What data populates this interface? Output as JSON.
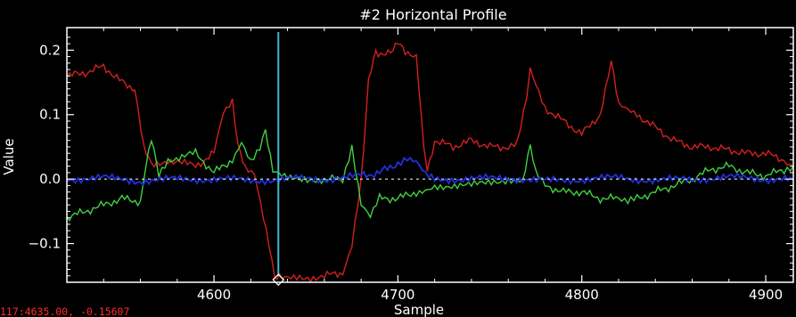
{
  "window": {
    "title": "#2 Horizontal Profile",
    "readout": "117:4635.00, -0.15607"
  },
  "colors": {
    "background": "#000000",
    "axes": "#ffffff",
    "cursor": "#40b8c8",
    "readout": "#ff2a2a"
  },
  "chart_data": {
    "type": "line",
    "title": "#2 Horizontal Profile",
    "xlabel": "Sample",
    "ylabel": "Value",
    "xlim": [
      4520,
      4915
    ],
    "ylim": [
      -0.16,
      0.235
    ],
    "xticks": [
      4600,
      4700,
      4800,
      4900
    ],
    "yticks": [
      -0.1,
      0.0,
      0.1,
      0.2
    ],
    "xtick_labels": [
      "4600",
      "4700",
      "4800",
      "4900"
    ],
    "ytick_labels": [
      "−0.1",
      "0.0",
      "0.1",
      "0.2"
    ],
    "grid": false,
    "cursor": {
      "x": 4635,
      "y": -0.15607
    },
    "series": [
      {
        "color": "#d42020",
        "x": [
          4520,
          4530,
          4540,
          4550,
          4557,
          4562,
          4566,
          4575,
          4590,
          4600,
          4605,
          4610,
          4613,
          4617,
          4622,
          4630,
          4633,
          4637,
          4645,
          4660,
          4670,
          4675,
          4680,
          4684,
          4688,
          4692,
          4696,
          4700,
          4704,
          4710,
          4714,
          4716,
          4720,
          4730,
          4740,
          4750,
          4760,
          4765,
          4770,
          4772,
          4775,
          4780,
          4790,
          4800,
          4810,
          4816,
          4820,
          4825,
          4830,
          4840,
          4850,
          4860,
          4870,
          4880,
          4890,
          4900,
          4910,
          4915
        ],
        "y": [
          0.16,
          0.165,
          0.175,
          0.15,
          0.14,
          0.05,
          0.02,
          0.03,
          0.02,
          0.04,
          0.1,
          0.12,
          0.05,
          0.02,
          0.01,
          -0.1,
          -0.15,
          -0.155,
          -0.155,
          -0.15,
          -0.145,
          -0.1,
          0.0,
          0.15,
          0.2,
          0.19,
          0.2,
          0.21,
          0.2,
          0.19,
          0.05,
          0.01,
          0.06,
          0.05,
          0.06,
          0.05,
          0.05,
          0.06,
          0.13,
          0.17,
          0.15,
          0.11,
          0.09,
          0.07,
          0.1,
          0.18,
          0.12,
          0.11,
          0.1,
          0.08,
          0.06,
          0.05,
          0.05,
          0.045,
          0.04,
          0.04,
          0.03,
          0.02
        ]
      },
      {
        "color": "#40d040",
        "x": [
          4520,
          4530,
          4540,
          4550,
          4560,
          4563,
          4566,
          4570,
          4575,
          4590,
          4600,
          4610,
          4615,
          4620,
          4625,
          4628,
          4632,
          4640,
          4660,
          4670,
          4675,
          4680,
          4685,
          4690,
          4700,
          4710,
          4715,
          4720,
          4740,
          4760,
          4768,
          4772,
          4775,
          4780,
          4790,
          4800,
          4810,
          4820,
          4825,
          4830,
          4840,
          4850,
          4860,
          4870,
          4880,
          4890,
          4900,
          4910,
          4915
        ],
        "y": [
          -0.06,
          -0.05,
          -0.04,
          -0.03,
          -0.035,
          0.02,
          0.06,
          0.01,
          0.03,
          0.04,
          0.01,
          0.03,
          0.06,
          0.03,
          0.05,
          0.08,
          0.01,
          0.0,
          0.0,
          0.0,
          0.05,
          -0.04,
          -0.06,
          -0.03,
          -0.03,
          -0.02,
          -0.015,
          -0.01,
          -0.01,
          0.0,
          0.0,
          0.05,
          0.01,
          -0.01,
          -0.02,
          -0.02,
          -0.03,
          -0.03,
          -0.035,
          -0.03,
          -0.02,
          -0.01,
          0.0,
          0.015,
          0.02,
          0.01,
          0.005,
          0.015,
          0.02
        ]
      },
      {
        "color": "#2030d8",
        "x": [
          4520,
          4540,
          4560,
          4580,
          4600,
          4620,
          4640,
          4660,
          4680,
          4690,
          4700,
          4705,
          4710,
          4715,
          4720,
          4740,
          4760,
          4780,
          4800,
          4820,
          4840,
          4860,
          4880,
          4900,
          4915
        ],
        "y": [
          0.0,
          0.002,
          -0.003,
          0.0,
          0.0,
          -0.002,
          0.0,
          0.0,
          0.005,
          0.01,
          0.025,
          0.035,
          0.03,
          0.01,
          0.0,
          0.0,
          0.002,
          -0.003,
          0.0,
          0.002,
          -0.002,
          0.0,
          0.003,
          0.0,
          -0.002
        ]
      }
    ]
  }
}
